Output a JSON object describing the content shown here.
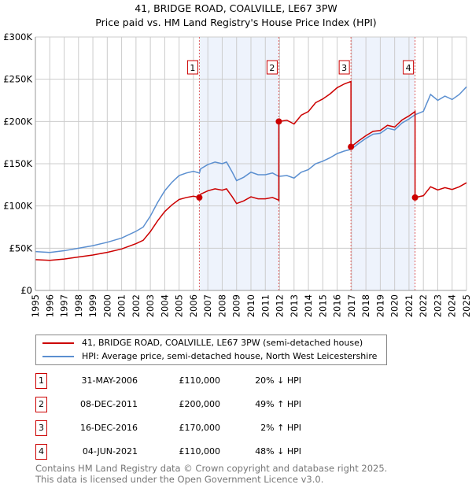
{
  "chart_data": {
    "type": "line",
    "title": "41, BRIDGE ROAD, COALVILLE, LE67 3PW",
    "subtitle": "Price paid vs. HM Land Registry's House Price Index (HPI)",
    "xlim": [
      1995,
      2025
    ],
    "ylim": [
      0,
      300000
    ],
    "yticks": [
      0,
      50000,
      100000,
      150000,
      200000,
      250000,
      300000
    ],
    "ytick_labels": [
      "£0",
      "£50K",
      "£100K",
      "£150K",
      "£200K",
      "£250K",
      "£300K"
    ],
    "xticks": [
      1995,
      1996,
      1997,
      1998,
      1999,
      2000,
      2001,
      2002,
      2003,
      2004,
      2005,
      2006,
      2007,
      2008,
      2009,
      2010,
      2011,
      2012,
      2013,
      2014,
      2015,
      2016,
      2017,
      2018,
      2019,
      2020,
      2021,
      2022,
      2023,
      2024,
      2025
    ],
    "grid": true,
    "legend_position": "below",
    "colors": {
      "property": "#cc0000",
      "hpi": "#5b8fd0",
      "shade": "#eef3fc"
    },
    "series": [
      {
        "name": "41, BRIDGE ROAD, COALVILLE, LE67 3PW (semi-detached house)",
        "derived_from": "hpi scaled at each sale"
      },
      {
        "name": "HPI: Average price, semi-detached house, North West Leicestershire",
        "x": [
          1995,
          1996,
          1997,
          1998,
          1999,
          2000,
          2001,
          2002,
          2002.5,
          2003,
          2003.5,
          2004,
          2004.5,
          2005,
          2005.5,
          2006,
          2006.41,
          2006.5,
          2007,
          2007.5,
          2008,
          2008.3,
          2008.7,
          2009,
          2009.5,
          2010,
          2010.5,
          2011,
          2011.5,
          2011.94,
          2012.5,
          2013,
          2013.5,
          2014,
          2014.5,
          2015,
          2015.5,
          2016,
          2016.5,
          2016.96,
          2017.5,
          2018,
          2018.5,
          2019,
          2019.5,
          2020,
          2020.5,
          2021,
          2021.42,
          2022,
          2022.5,
          2023,
          2023.5,
          2024,
          2024.5,
          2025
        ],
        "y": [
          46000,
          45000,
          47000,
          50000,
          53000,
          57000,
          62000,
          70000,
          75000,
          88000,
          104000,
          118000,
          128000,
          136000,
          139000,
          141000,
          139000,
          144000,
          149000,
          152000,
          150000,
          152000,
          140000,
          130000,
          134000,
          140000,
          137000,
          137000,
          139000,
          135000,
          136000,
          133000,
          140000,
          143000,
          150000,
          153000,
          157000,
          162000,
          165000,
          167000,
          174000,
          180000,
          185000,
          186000,
          192000,
          190000,
          198000,
          203000,
          208000,
          212000,
          232000,
          225000,
          230000,
          226000,
          232000,
          241000
        ]
      }
    ],
    "sales": [
      {
        "label": "1",
        "x": 2006.41,
        "date": "31-MAY-2006",
        "price": 110000,
        "price_label": "£110,000",
        "hpi_diff": "20% ↓ HPI"
      },
      {
        "label": "2",
        "x": 2011.94,
        "date": "08-DEC-2011",
        "price": 200000,
        "price_label": "£200,000",
        "hpi_diff": "49% ↑ HPI"
      },
      {
        "label": "3",
        "x": 2016.96,
        "date": "16-DEC-2016",
        "price": 170000,
        "price_label": "£170,000",
        "hpi_diff": "2% ↑ HPI"
      },
      {
        "label": "4",
        "x": 2021.42,
        "date": "04-JUN-2021",
        "price": 110000,
        "price_label": "£110,000",
        "hpi_diff": "48% ↓ HPI"
      }
    ]
  },
  "footer": {
    "line1": "Contains HM Land Registry data © Crown copyright and database right 2025.",
    "line2": "This data is licensed under the Open Government Licence v3.0."
  }
}
